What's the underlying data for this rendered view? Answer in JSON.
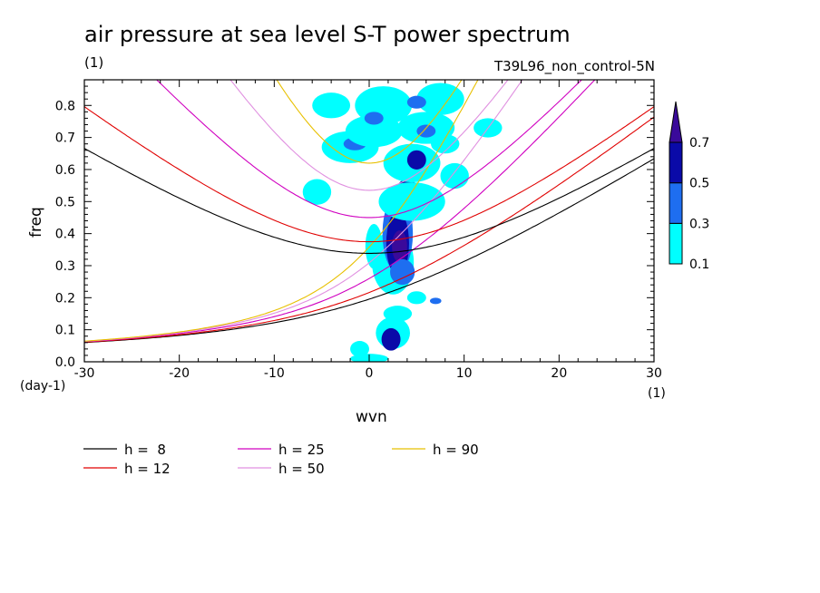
{
  "chart_data": {
    "type": "heatmap",
    "title": "air pressure at sea level S-T power spectrum",
    "subtitle_left": "(1)",
    "subtitle_right": "T39L96_non_control-5N",
    "xlabel": "wvn",
    "ylabel": "freq",
    "x_unit": "(1)",
    "y_unit": "(day-1)",
    "xlim": [
      -30,
      30
    ],
    "ylim": [
      0,
      0.88
    ],
    "x_ticks": [
      -30,
      -20,
      -10,
      0,
      10,
      20,
      30
    ],
    "x_tick_labels": [
      "-30",
      "-20",
      "-10",
      "0",
      "10",
      "20",
      "30"
    ],
    "y_ticks": [
      0,
      0.1,
      0.2,
      0.3,
      0.4,
      0.5,
      0.6,
      0.7,
      0.8
    ],
    "y_tick_labels": [
      "0.0",
      "0.1",
      "0.2",
      "0.3",
      "0.4",
      "0.5",
      "0.6",
      "0.7",
      "0.8"
    ],
    "colorbar": {
      "levels": [
        "0.1",
        "0.3",
        "0.5",
        "0.7"
      ],
      "colors": [
        "#00ffff",
        "#1e6ef0",
        "#0a0aa8",
        "#3a0a9a"
      ]
    },
    "contour_regions": [
      {
        "level": 0.1,
        "wvn": 0.5,
        "freq": 0.36,
        "rx": 0.9,
        "ry": 0.07
      },
      {
        "level": 0.1,
        "wvn": 2.5,
        "freq": 0.31,
        "rx": 2.2,
        "ry": 0.1
      },
      {
        "level": 0.3,
        "wvn": 3.0,
        "freq": 0.4,
        "rx": 1.6,
        "ry": 0.12
      },
      {
        "level": 0.5,
        "wvn": 3.0,
        "freq": 0.37,
        "rx": 1.2,
        "ry": 0.1
      },
      {
        "level": 0.7,
        "wvn": 3.2,
        "freq": 0.36,
        "rx": 0.8,
        "ry": 0.05
      },
      {
        "level": 0.3,
        "wvn": 3.5,
        "freq": 0.28,
        "rx": 1.3,
        "ry": 0.04
      },
      {
        "level": 0.5,
        "wvn": 4.0,
        "freq": 0.52,
        "rx": 1.3,
        "ry": 0.05
      },
      {
        "level": 0.7,
        "wvn": 4.0,
        "freq": 0.53,
        "rx": 0.7,
        "ry": 0.02
      },
      {
        "level": 0.1,
        "wvn": 4.5,
        "freq": 0.5,
        "rx": 3.5,
        "ry": 0.06
      },
      {
        "level": 0.1,
        "wvn": 4.5,
        "freq": 0.62,
        "rx": 3.0,
        "ry": 0.06
      },
      {
        "level": 0.5,
        "wvn": 5.0,
        "freq": 0.63,
        "rx": 1.0,
        "ry": 0.03
      },
      {
        "level": 0.1,
        "wvn": -2.0,
        "freq": 0.67,
        "rx": 3.0,
        "ry": 0.05
      },
      {
        "level": 0.3,
        "wvn": -1.5,
        "freq": 0.68,
        "rx": 1.2,
        "ry": 0.02
      },
      {
        "level": 0.1,
        "wvn": 0.5,
        "freq": 0.72,
        "rx": 3.0,
        "ry": 0.05
      },
      {
        "level": 0.1,
        "wvn": 6.0,
        "freq": 0.73,
        "rx": 3.0,
        "ry": 0.05
      },
      {
        "level": 0.3,
        "wvn": 6.0,
        "freq": 0.72,
        "rx": 1.0,
        "ry": 0.02
      },
      {
        "level": 0.1,
        "wvn": 1.5,
        "freq": 0.8,
        "rx": 3.0,
        "ry": 0.06
      },
      {
        "level": 0.1,
        "wvn": -4.0,
        "freq": 0.8,
        "rx": 2.0,
        "ry": 0.04
      },
      {
        "level": 0.1,
        "wvn": 7.5,
        "freq": 0.82,
        "rx": 2.5,
        "ry": 0.05
      },
      {
        "level": 0.3,
        "wvn": 0.5,
        "freq": 0.76,
        "rx": 1.0,
        "ry": 0.02
      },
      {
        "level": 0.3,
        "wvn": 5.0,
        "freq": 0.81,
        "rx": 1.0,
        "ry": 0.02
      },
      {
        "level": 0.1,
        "wvn": -5.5,
        "freq": 0.53,
        "rx": 1.5,
        "ry": 0.04
      },
      {
        "level": 0.1,
        "wvn": 9.0,
        "freq": 0.58,
        "rx": 1.5,
        "ry": 0.04
      },
      {
        "level": 0.1,
        "wvn": 12.5,
        "freq": 0.73,
        "rx": 1.5,
        "ry": 0.03
      },
      {
        "level": 0.1,
        "wvn": -1.0,
        "freq": 0.04,
        "rx": 1.0,
        "ry": 0.025
      },
      {
        "level": 0.1,
        "wvn": 2.5,
        "freq": 0.09,
        "rx": 1.8,
        "ry": 0.05
      },
      {
        "level": 0.5,
        "wvn": 2.3,
        "freq": 0.07,
        "rx": 1.0,
        "ry": 0.035
      },
      {
        "level": 0.1,
        "wvn": 3.0,
        "freq": 0.15,
        "rx": 1.5,
        "ry": 0.025
      },
      {
        "level": 0.1,
        "wvn": 5.0,
        "freq": 0.2,
        "rx": 1.0,
        "ry": 0.02
      },
      {
        "level": 0.3,
        "wvn": 7.0,
        "freq": 0.19,
        "rx": 0.6,
        "ry": 0.01
      },
      {
        "level": 0.1,
        "wvn": 0.0,
        "freq": 0.01,
        "rx": 2.0,
        "ry": 0.015
      },
      {
        "level": 0.1,
        "wvn": 8.0,
        "freq": 0.68,
        "rx": 1.5,
        "ry": 0.03
      }
    ],
    "dispersion_curves": [
      {
        "name": "h =  8",
        "color": "#000000",
        "type": "kelvin",
        "equivalent_depth_m": 8
      },
      {
        "name": "h = 12",
        "color": "#e00000",
        "type": "kelvin",
        "equivalent_depth_m": 12
      },
      {
        "name": "h = 25",
        "color": "#d000c0",
        "type": "kelvin",
        "equivalent_depth_m": 25
      },
      {
        "name": "h = 50",
        "color": "#e090e0",
        "type": "kelvin",
        "equivalent_depth_m": 50
      },
      {
        "name": "h = 90",
        "color": "#e8c000",
        "type": "kelvin",
        "equivalent_depth_m": 90
      },
      {
        "name": "",
        "color": "#000000",
        "type": "inertia-gravity",
        "equivalent_depth_m": 8
      },
      {
        "name": "",
        "color": "#e00000",
        "type": "inertia-gravity",
        "equivalent_depth_m": 12
      },
      {
        "name": "",
        "color": "#d000c0",
        "type": "inertia-gravity",
        "equivalent_depth_m": 25
      },
      {
        "name": "",
        "color": "#e090e0",
        "type": "inertia-gravity",
        "equivalent_depth_m": 50
      },
      {
        "name": "",
        "color": "#e8c000",
        "type": "inertia-gravity",
        "equivalent_depth_m": 90
      }
    ]
  }
}
